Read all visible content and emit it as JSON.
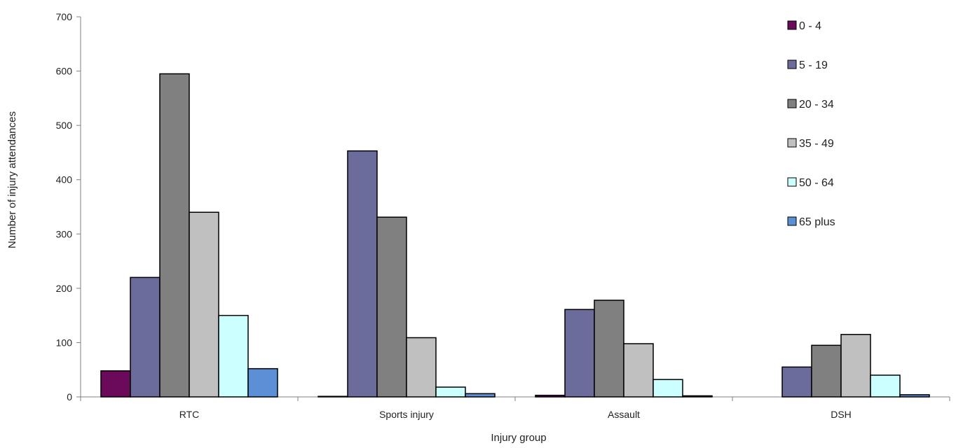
{
  "chart_data": {
    "type": "bar",
    "title": "",
    "xlabel": "Injury group",
    "ylabel": "Number of injury attendances",
    "ylim": [
      0,
      700
    ],
    "yticks": [
      0,
      100,
      200,
      300,
      400,
      500,
      600,
      700
    ],
    "categories": [
      "RTC",
      "Sports injury",
      "Assault",
      "DSH"
    ],
    "legend_position": "top-right",
    "grid": false,
    "series": [
      {
        "name": "0 - 4",
        "color": "#6b0a5b",
        "values": [
          48,
          1,
          3,
          0
        ]
      },
      {
        "name": "5 - 19",
        "color": "#6b6b9c",
        "values": [
          220,
          453,
          161,
          55
        ]
      },
      {
        "name": "20 - 34",
        "color": "#808080",
        "values": [
          595,
          331,
          178,
          95
        ]
      },
      {
        "name": "35 - 49",
        "color": "#c0c0c0",
        "values": [
          340,
          109,
          98,
          115
        ]
      },
      {
        "name": "50 - 64",
        "color": "#ccffff",
        "values": [
          150,
          18,
          32,
          40
        ]
      },
      {
        "name": "65 plus",
        "color": "#5b8fd6",
        "values": [
          52,
          6,
          2,
          4
        ]
      }
    ]
  }
}
